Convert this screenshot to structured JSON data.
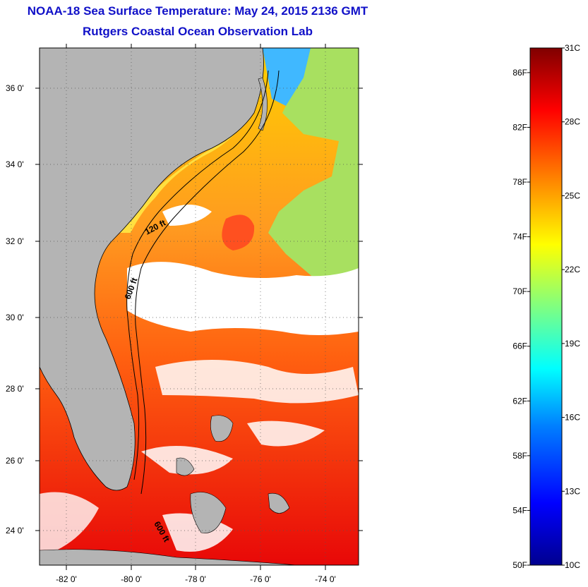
{
  "title": "NOAA-18 Sea Surface Temperature:  May 24, 2015 2136 GMT",
  "subtitle": "Rutgers Coastal Ocean Observation Lab",
  "latitude_ticks": [
    "36 0'",
    "34 0'",
    "32 0'",
    "30 0'",
    "28 0'",
    "26 0'",
    "24 0'"
  ],
  "longitude_ticks": [
    "-82 0'",
    "-80 0'",
    "-78 0'",
    "-76 0'",
    "-74 0'"
  ],
  "contour_labels": [
    "120 ft",
    "600 ft",
    "600 ft"
  ],
  "colorbar": {
    "celsius_labels": [
      "31C",
      "28C",
      "25C",
      "22C",
      "19C",
      "16C",
      "13C",
      "10C"
    ],
    "fahrenheit_labels": [
      "86F",
      "82F",
      "78F",
      "74F",
      "70F",
      "66F",
      "62F",
      "58F",
      "54F",
      "50F"
    ],
    "range_celsius": [
      10,
      31
    ],
    "colors": [
      "#00008f",
      "#0000ff",
      "#0080ff",
      "#00ffff",
      "#80ff80",
      "#ffff00",
      "#ff8000",
      "#ff0000",
      "#800000"
    ]
  },
  "colors": {
    "land": "#b4b4b4",
    "cloud_nodata": "#ffffff",
    "title": "#1010c8"
  }
}
